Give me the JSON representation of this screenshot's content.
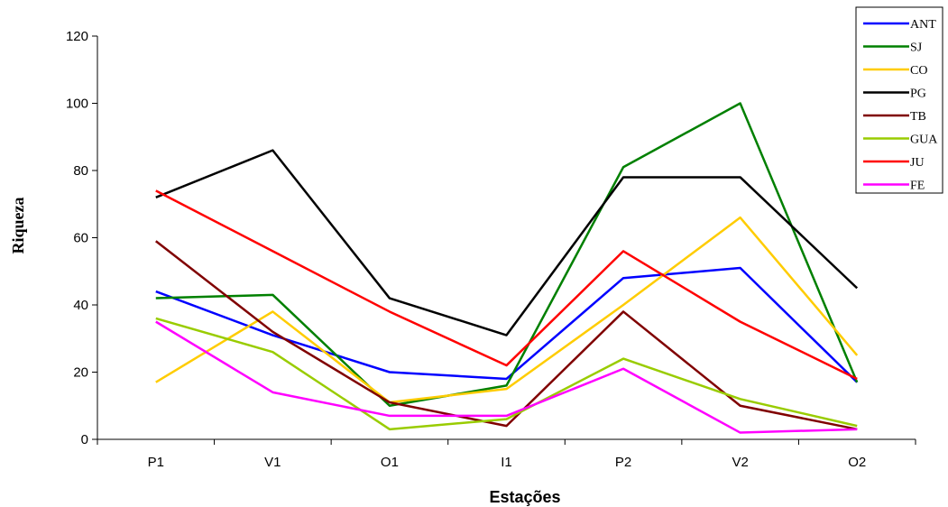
{
  "chart_data": {
    "type": "line",
    "xlabel": "Estações",
    "ylabel": "Riqueza",
    "categories": [
      "P1",
      "V1",
      "O1",
      "I1",
      "P2",
      "V2",
      "O2"
    ],
    "ylim": [
      0,
      120
    ],
    "yticks": [
      0,
      20,
      40,
      60,
      80,
      100,
      120
    ],
    "grid": false,
    "legend_position": "top-right",
    "series": [
      {
        "name": "ANT",
        "color": "#0000FF",
        "values": [
          44,
          31,
          20,
          18,
          48,
          51,
          17
        ]
      },
      {
        "name": "SJ",
        "color": "#008000",
        "values": [
          42,
          43,
          10,
          16,
          81,
          100,
          17
        ]
      },
      {
        "name": "CO",
        "color": "#FFCC00",
        "values": [
          17,
          38,
          11,
          15,
          40,
          66,
          25
        ]
      },
      {
        "name": "PG",
        "color": "#000000",
        "values": [
          72,
          86,
          42,
          31,
          78,
          78,
          45
        ]
      },
      {
        "name": "TB",
        "color": "#800000",
        "values": [
          59,
          32,
          11,
          4,
          38,
          10,
          3
        ]
      },
      {
        "name": "GUA",
        "color": "#99CC00",
        "values": [
          36,
          26,
          3,
          6,
          24,
          12,
          4
        ]
      },
      {
        "name": "JU",
        "color": "#FF0000",
        "values": [
          74,
          56,
          38,
          22,
          56,
          35,
          18
        ]
      },
      {
        "name": "FE",
        "color": "#FF00FF",
        "values": [
          35,
          14,
          7,
          7,
          21,
          2,
          3
        ]
      }
    ]
  }
}
